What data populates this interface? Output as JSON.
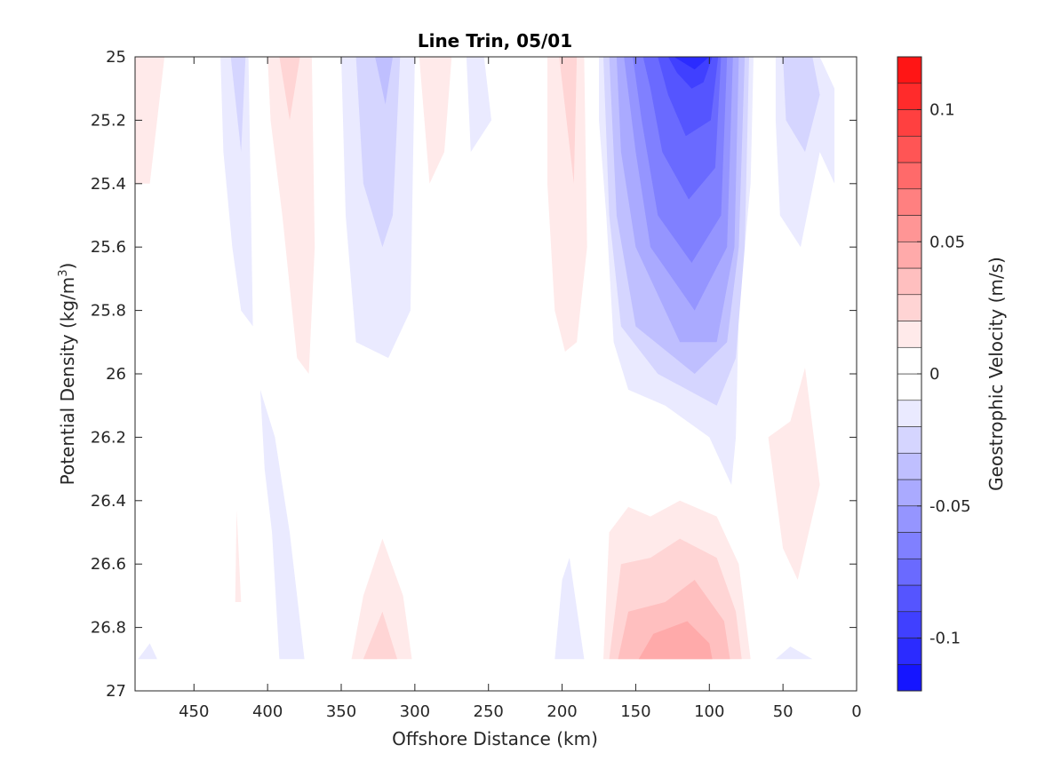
{
  "chart_data": {
    "type": "heatmap",
    "subtype": "filled-contour",
    "title": "Line Trin, 05/01",
    "xlabel": "Offshore Distance (km)",
    "ylabel_main": "Potential Density (kg/m",
    "ylabel_sup": "3",
    "ylabel_close": ")",
    "xlim": [
      490,
      0
    ],
    "x_reversed": true,
    "ylim": [
      25,
      27
    ],
    "y_reversed": true,
    "x_ticks": [
      450,
      400,
      350,
      300,
      250,
      200,
      150,
      100,
      50,
      0
    ],
    "x_tick_labels": [
      "450",
      "400",
      "350",
      "300",
      "250",
      "200",
      "150",
      "100",
      "50",
      "0"
    ],
    "y_ticks": [
      25,
      25.2,
      25.4,
      25.6,
      25.8,
      26,
      26.2,
      26.4,
      26.6,
      26.8,
      27
    ],
    "y_tick_labels": [
      "25",
      "25.2",
      "25.4",
      "25.6",
      "25.8",
      "26",
      "26.2",
      "26.4",
      "26.6",
      "26.8",
      "27"
    ],
    "colorbar": {
      "label": "Geostrophic Velocity (m/s)",
      "limits": [
        -0.12,
        0.12
      ],
      "level_step": 0.01,
      "ticks": [
        0.1,
        0.05,
        0,
        -0.05,
        -0.1
      ],
      "tick_labels": [
        "0.1",
        "0.05",
        "0",
        "-0.05",
        "-0.1"
      ],
      "min_color": "#0000ff",
      "zero_color": "#ffffff",
      "max_color": "#ff0000"
    },
    "regions": [
      {
        "name": "neg-core-1",
        "level": -0.01,
        "points": [
          [
            175,
            25
          ],
          [
            70,
            25
          ],
          [
            72,
            25.4
          ],
          [
            80,
            25.8
          ],
          [
            82,
            26.2
          ],
          [
            85,
            26.35
          ],
          [
            100,
            26.2
          ],
          [
            130,
            26.1
          ],
          [
            155,
            26.05
          ],
          [
            165,
            25.9
          ],
          [
            170,
            25.5
          ],
          [
            175,
            25.2
          ]
        ]
      },
      {
        "name": "neg-core-2",
        "level": -0.02,
        "points": [
          [
            172,
            25
          ],
          [
            73,
            25
          ],
          [
            76,
            25.6
          ],
          [
            82,
            25.95
          ],
          [
            95,
            26.1
          ],
          [
            135,
            26
          ],
          [
            160,
            25.85
          ],
          [
            168,
            25.5
          ]
        ]
      },
      {
        "name": "neg-core-3",
        "level": -0.03,
        "points": [
          [
            168,
            25
          ],
          [
            76,
            25
          ],
          [
            80,
            25.6
          ],
          [
            88,
            25.9
          ],
          [
            110,
            26
          ],
          [
            150,
            25.85
          ],
          [
            163,
            25.5
          ]
        ]
      },
      {
        "name": "neg-core-4",
        "level": -0.04,
        "points": [
          [
            163,
            25
          ],
          [
            80,
            25
          ],
          [
            83,
            25.6
          ],
          [
            95,
            25.9
          ],
          [
            120,
            25.9
          ],
          [
            150,
            25.6
          ],
          [
            160,
            25.3
          ]
        ]
      },
      {
        "name": "neg-core-5",
        "level": -0.05,
        "points": [
          [
            158,
            25
          ],
          [
            84,
            25
          ],
          [
            88,
            25.6
          ],
          [
            110,
            25.8
          ],
          [
            140,
            25.6
          ],
          [
            150,
            25.3
          ]
        ]
      },
      {
        "name": "neg-core-6",
        "level": -0.06,
        "points": [
          [
            152,
            25
          ],
          [
            88,
            25
          ],
          [
            92,
            25.5
          ],
          [
            112,
            25.65
          ],
          [
            135,
            25.5
          ],
          [
            146,
            25.2
          ]
        ]
      },
      {
        "name": "neg-core-7",
        "level": -0.07,
        "points": [
          [
            145,
            25
          ],
          [
            92,
            25
          ],
          [
            96,
            25.35
          ],
          [
            114,
            25.45
          ],
          [
            132,
            25.3
          ],
          [
            140,
            25.1
          ]
        ]
      },
      {
        "name": "neg-core-8",
        "level": -0.08,
        "points": [
          [
            135,
            25
          ],
          [
            94,
            25
          ],
          [
            99,
            25.2
          ],
          [
            116,
            25.25
          ],
          [
            128,
            25.12
          ]
        ]
      },
      {
        "name": "neg-core-9",
        "level": -0.09,
        "points": [
          [
            128,
            25
          ],
          [
            98,
            25
          ],
          [
            104,
            25.08
          ],
          [
            112,
            25.1
          ],
          [
            122,
            25.05
          ]
        ]
      },
      {
        "name": "neg-core-10",
        "level": -0.1,
        "points": [
          [
            124,
            25
          ],
          [
            100,
            25
          ],
          [
            110,
            25.04
          ]
        ]
      },
      {
        "name": "neg-east-1",
        "level": -0.01,
        "points": [
          [
            55,
            25
          ],
          [
            25,
            25
          ],
          [
            15,
            25.1
          ],
          [
            15,
            25.4
          ],
          [
            25,
            25.3
          ],
          [
            38,
            25.6
          ],
          [
            52,
            25.5
          ],
          [
            55,
            25.2
          ]
        ]
      },
      {
        "name": "neg-east-2",
        "level": -0.02,
        "points": [
          [
            50,
            25
          ],
          [
            30,
            25
          ],
          [
            25,
            25.12
          ],
          [
            35,
            25.3
          ],
          [
            48,
            25.2
          ]
        ]
      },
      {
        "name": "neg-430",
        "level": -0.01,
        "points": [
          [
            432,
            25
          ],
          [
            413,
            25
          ],
          [
            410,
            25.85
          ],
          [
            418,
            25.8
          ],
          [
            424,
            25.6
          ],
          [
            430,
            25.3
          ]
        ]
      },
      {
        "name": "neg-430-2",
        "level": -0.02,
        "points": [
          [
            425,
            25
          ],
          [
            415,
            25
          ],
          [
            418,
            25.3
          ]
        ]
      },
      {
        "name": "neg-330",
        "level": -0.01,
        "points": [
          [
            350,
            25
          ],
          [
            300,
            25
          ],
          [
            303,
            25.8
          ],
          [
            318,
            25.95
          ],
          [
            340,
            25.9
          ],
          [
            347,
            25.5
          ]
        ]
      },
      {
        "name": "neg-330-2",
        "level": -0.02,
        "points": [
          [
            340,
            25
          ],
          [
            310,
            25
          ],
          [
            315,
            25.5
          ],
          [
            322,
            25.6
          ],
          [
            335,
            25.4
          ]
        ]
      },
      {
        "name": "neg-330-3",
        "level": -0.03,
        "points": [
          [
            327,
            25
          ],
          [
            315,
            25
          ],
          [
            320,
            25.15
          ]
        ]
      },
      {
        "name": "neg-260",
        "level": -0.01,
        "points": [
          [
            265,
            25
          ],
          [
            253,
            25
          ],
          [
            248,
            25.2
          ],
          [
            262,
            25.3
          ]
        ]
      },
      {
        "name": "neg-400-deep",
        "level": -0.01,
        "points": [
          [
            405,
            26.05
          ],
          [
            395,
            26.2
          ],
          [
            385,
            26.5
          ],
          [
            375,
            26.9
          ],
          [
            392,
            26.9
          ],
          [
            397,
            26.5
          ],
          [
            402,
            26.3
          ]
        ]
      },
      {
        "name": "neg-200-deep",
        "level": -0.01,
        "points": [
          [
            195,
            26.58
          ],
          [
            185,
            26.9
          ],
          [
            205,
            26.9
          ],
          [
            200,
            26.65
          ]
        ]
      },
      {
        "name": "neg-45-deep",
        "level": -0.01,
        "points": [
          [
            45,
            26.86
          ],
          [
            30,
            26.9
          ],
          [
            55,
            26.9
          ]
        ]
      },
      {
        "name": "neg-480-deep",
        "level": -0.01,
        "points": [
          [
            480,
            26.85
          ],
          [
            475,
            26.9
          ],
          [
            488,
            26.9
          ]
        ]
      },
      {
        "name": "pos-200",
        "level": 0.01,
        "points": [
          [
            210,
            25
          ],
          [
            185,
            25
          ],
          [
            183,
            25.6
          ],
          [
            190,
            25.9
          ],
          [
            198,
            25.93
          ],
          [
            205,
            25.8
          ],
          [
            210,
            25.4
          ]
        ]
      },
      {
        "name": "pos-200-2",
        "level": 0.02,
        "points": [
          [
            202,
            25
          ],
          [
            190,
            25
          ],
          [
            192,
            25.4
          ]
        ]
      },
      {
        "name": "pos-385",
        "level": 0.01,
        "points": [
          [
            400,
            25
          ],
          [
            370,
            25
          ],
          [
            368,
            25.6
          ],
          [
            372,
            26.0
          ],
          [
            380,
            25.95
          ],
          [
            390,
            25.5
          ],
          [
            398,
            25.2
          ]
        ]
      },
      {
        "name": "pos-385-2",
        "level": 0.02,
        "points": [
          [
            392,
            25
          ],
          [
            378,
            25
          ],
          [
            385,
            25.2
          ]
        ]
      },
      {
        "name": "pos-290",
        "level": 0.01,
        "points": [
          [
            297,
            25
          ],
          [
            275,
            25
          ],
          [
            280,
            25.3
          ],
          [
            290,
            25.4
          ]
        ]
      },
      {
        "name": "pos-490",
        "level": 0.01,
        "points": [
          [
            490,
            25
          ],
          [
            470,
            25
          ],
          [
            480,
            25.4
          ],
          [
            490,
            25.4
          ]
        ]
      },
      {
        "name": "pos-deep-main",
        "level": 0.01,
        "points": [
          [
            172,
            26.9
          ],
          [
            168,
            26.5
          ],
          [
            155,
            26.42
          ],
          [
            140,
            26.45
          ],
          [
            120,
            26.4
          ],
          [
            95,
            26.45
          ],
          [
            80,
            26.6
          ],
          [
            72,
            26.9
          ]
        ]
      },
      {
        "name": "pos-deep-main-2",
        "level": 0.02,
        "points": [
          [
            168,
            26.9
          ],
          [
            160,
            26.6
          ],
          [
            140,
            26.58
          ],
          [
            120,
            26.52
          ],
          [
            95,
            26.58
          ],
          [
            82,
            26.75
          ],
          [
            78,
            26.9
          ]
        ]
      },
      {
        "name": "pos-deep-main-3",
        "level": 0.03,
        "points": [
          [
            162,
            26.9
          ],
          [
            155,
            26.75
          ],
          [
            130,
            26.72
          ],
          [
            110,
            26.65
          ],
          [
            90,
            26.78
          ],
          [
            86,
            26.9
          ]
        ]
      },
      {
        "name": "pos-deep-main-4",
        "level": 0.04,
        "points": [
          [
            148,
            26.9
          ],
          [
            138,
            26.82
          ],
          [
            115,
            26.78
          ],
          [
            100,
            26.85
          ],
          [
            98,
            26.9
          ]
        ]
      },
      {
        "name": "pos-deep-325",
        "level": 0.01,
        "points": [
          [
            343,
            26.9
          ],
          [
            335,
            26.7
          ],
          [
            322,
            26.52
          ],
          [
            308,
            26.7
          ],
          [
            302,
            26.9
          ]
        ]
      },
      {
        "name": "pos-deep-325-2",
        "level": 0.02,
        "points": [
          [
            335,
            26.9
          ],
          [
            322,
            26.75
          ],
          [
            312,
            26.9
          ]
        ]
      },
      {
        "name": "pos-deep-420",
        "level": 0.01,
        "points": [
          [
            421,
            26.43
          ],
          [
            418,
            26.72
          ],
          [
            422,
            26.72
          ]
        ]
      },
      {
        "name": "pos-east-deep",
        "level": 0.01,
        "points": [
          [
            60,
            26.2
          ],
          [
            50,
            26.55
          ],
          [
            40,
            26.65
          ],
          [
            25,
            26.35
          ],
          [
            35,
            25.98
          ],
          [
            45,
            26.15
          ]
        ]
      }
    ]
  }
}
